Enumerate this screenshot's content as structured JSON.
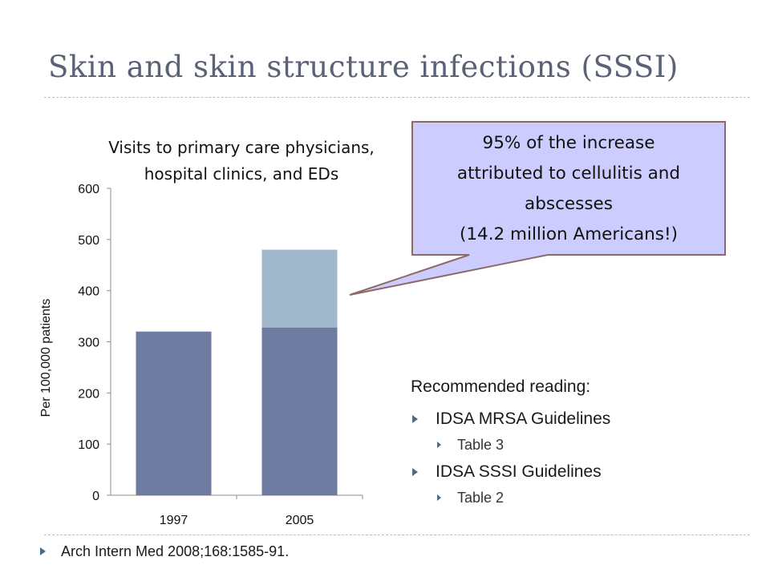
{
  "slide": {
    "title": "Skin and skin structure infections (SSSI)",
    "citation": "Arch Intern Med 2008;168:1585-91."
  },
  "callout": {
    "lines": [
      "95% of the increase",
      "attributed to cellulitis and",
      "abscesses",
      "(14.2 million Americans!)"
    ],
    "fill": "#ccccff",
    "border": "#8e6a66"
  },
  "reading": {
    "heading": "Recommended reading:",
    "items": [
      {
        "label": "IDSA MRSA Guidelines",
        "sub": "Table 3"
      },
      {
        "label": "IDSA SSSI Guidelines",
        "sub": "Table 2"
      }
    ],
    "bullet_color": "#4a6b86"
  },
  "chart_data": {
    "type": "bar",
    "stacked": true,
    "title": "Visits to primary care physicians, hospital clinics, and EDs",
    "ylabel": "Per 100,000 patients",
    "xlabel": "",
    "categories": [
      "1997",
      "2005"
    ],
    "series": [
      {
        "values": [
          320,
          328
        ],
        "color": "#6f7ba0"
      },
      {
        "values": [
          0,
          152
        ],
        "color": "#a0b6ca"
      }
    ],
    "ylim": [
      0,
      600
    ],
    "yticks": [
      0,
      100,
      200,
      300,
      400,
      500,
      600
    ],
    "grid": false
  }
}
